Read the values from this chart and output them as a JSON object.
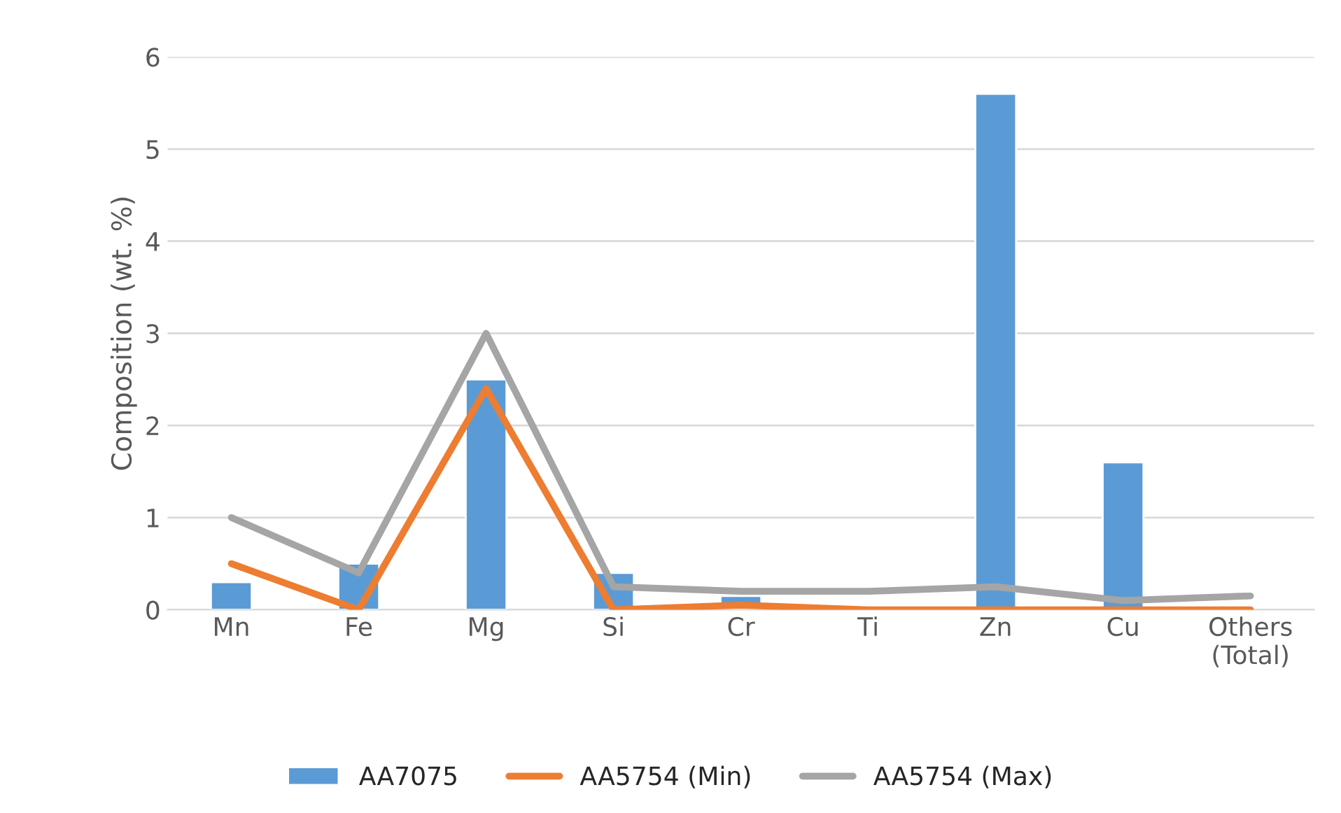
{
  "chart_data": {
    "type": "bar",
    "ylabel": "Composition (wt. %)",
    "categories": [
      "Mn",
      "Fe",
      "Mg",
      "Si",
      "Cr",
      "Ti",
      "Zn",
      "Cu",
      "Others\n(Total)"
    ],
    "series": [
      {
        "name": "AA7075",
        "color": "#5b9bd5",
        "values": [
          0.3,
          0.5,
          2.5,
          0.4,
          0.15,
          null,
          5.6,
          1.6,
          null
        ]
      },
      {
        "name": "AA5754 (Min)",
        "type": "line",
        "color": "#ed7d31",
        "values": [
          0.5,
          0,
          2.4,
          0,
          0.05,
          0,
          0,
          0,
          0
        ]
      },
      {
        "name": "AA5754 (Max)",
        "type": "line",
        "color": "#a5a5a5",
        "values": [
          1.0,
          0.4,
          3.0,
          0.25,
          0.2,
          0.2,
          0.25,
          0.1,
          0.15
        ]
      }
    ],
    "ylim": [
      0,
      6
    ],
    "yticks": [
      0,
      1,
      2,
      3,
      4,
      5,
      6
    ],
    "grid": "y",
    "legend": "bottom"
  }
}
